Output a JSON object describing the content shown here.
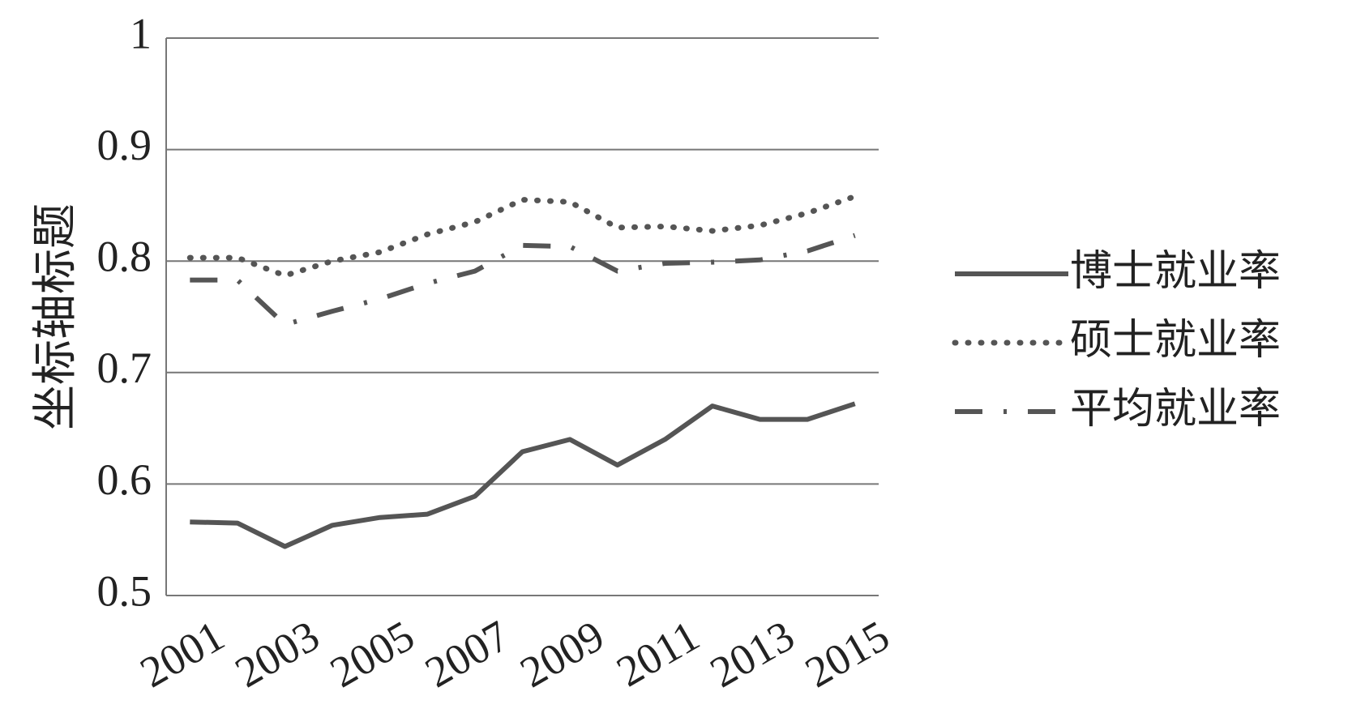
{
  "chart_data": {
    "type": "line",
    "y_label": "坐标轴标题",
    "categories": [
      "2001",
      null,
      "2003",
      null,
      "2005",
      null,
      "2007",
      null,
      "2009",
      null,
      "2011",
      null,
      "2013",
      null,
      "2015"
    ],
    "series": [
      {
        "name": "博士就业率",
        "color": "#555555",
        "style": "solid",
        "values": [
          0.566,
          0.565,
          0.544,
          0.563,
          0.57,
          0.573,
          0.589,
          0.629,
          0.64,
          0.617,
          0.64,
          0.67,
          0.658,
          0.658,
          0.672
        ]
      },
      {
        "name": "硕士就业率",
        "color": "#555555",
        "style": "dotted",
        "values": [
          0.803,
          0.803,
          0.787,
          0.8,
          0.808,
          0.824,
          0.835,
          0.855,
          0.853,
          0.83,
          0.831,
          0.827,
          0.832,
          0.843,
          0.858
        ]
      },
      {
        "name": "平均就业率",
        "color": "#555555",
        "style": "dashdot",
        "values": [
          0.783,
          0.783,
          0.743,
          0.755,
          0.766,
          0.78,
          0.791,
          0.814,
          0.813,
          0.791,
          0.798,
          0.799,
          0.801,
          0.809,
          0.823
        ]
      }
    ],
    "ylim": [
      0.5,
      1
    ],
    "yticks": [
      0.5,
      0.6,
      0.7,
      0.8,
      0.9,
      1
    ],
    "grid": true,
    "legend": "right"
  }
}
